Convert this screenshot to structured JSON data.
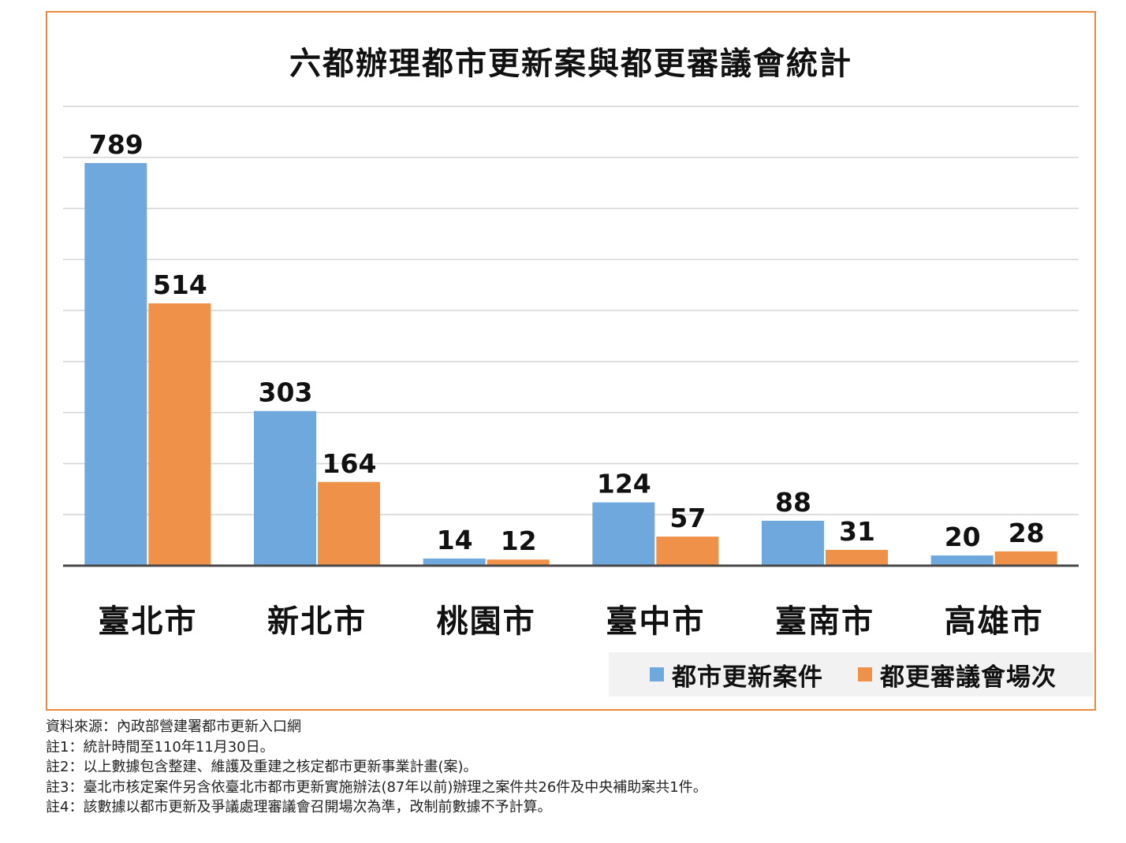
{
  "colors": {
    "frame": "#e8893f",
    "series_blue": "#6fa8dc",
    "series_orange": "#f0914a",
    "grid": "#d4d4d4",
    "axis": "#4a4a4a",
    "legend_bg": "#f2f2f2"
  },
  "chart_data": {
    "type": "bar",
    "title": "六都辦理都市更新案與都更審議會統計",
    "categories": [
      "臺北市",
      "新北市",
      "桃園市",
      "臺中市",
      "臺南市",
      "高雄市"
    ],
    "series": [
      {
        "name": "都市更新案件",
        "values": [
          789,
          303,
          14,
          124,
          88,
          20
        ],
        "color": "#6fa8dc"
      },
      {
        "name": "都更審議會場次",
        "values": [
          514,
          164,
          12,
          57,
          31,
          28
        ],
        "color": "#f0914a"
      }
    ],
    "ylim": [
      0,
      900
    ],
    "ytick_step": 100,
    "grid": true,
    "show_y_tick_labels": false,
    "data_labels": true,
    "legend_position": "bottom-right",
    "xlabel": "",
    "ylabel": ""
  },
  "notes": [
    "資料來源：內政部營建署都市更新入口網",
    "註1：統計時間至110年11月30日。",
    "註2：以上數據包含整建、維護及重建之核定都市更新事業計畫(案)。",
    "註3：臺北市核定案件另含依臺北市都市更新實施辦法(87年以前)辦理之案件共26件及中央補助案共1件。",
    "註4：該數據以都市更新及爭議處理審議會召開場次為準，改制前數據不予計算。"
  ]
}
